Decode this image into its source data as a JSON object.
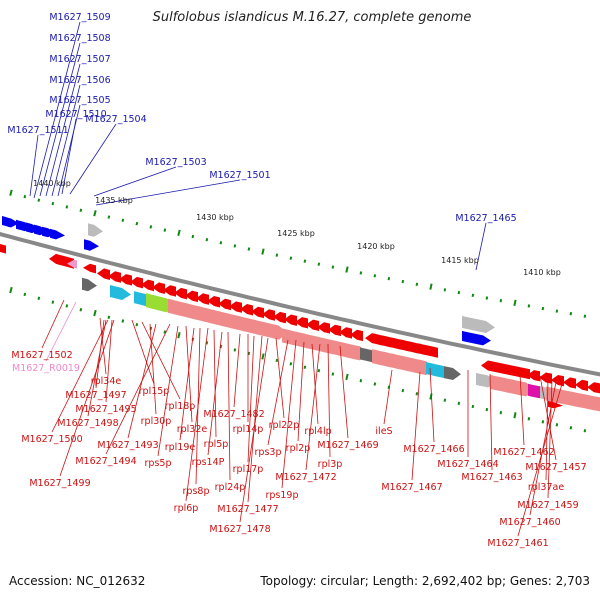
{
  "title": "Sulfolobus islandicus M.16.27, complete genome",
  "footer": {
    "accession": "Accession: NC_012632",
    "summary": "Topology: circular; Length: 2,692,402 bp; Genes: 2,703"
  },
  "colors": {
    "backbone": "#888888",
    "forward_gene": "#0000ee",
    "reverse_gene": "#ee0000",
    "reverse_cds": "#f08a8a",
    "pseudo": "#ee99cc",
    "tick": "#118811",
    "rna_cyan": "#22bbdd",
    "rna_green": "#99dd33",
    "rna_magenta": "#dd11aa",
    "grey_block": "#bbbbbb",
    "dark_block": "#666666"
  },
  "scale_labels": [
    "1440 kbp",
    "1435 kbp",
    "1430 kbp",
    "1425 kbp",
    "1420 kbp",
    "1415 kbp",
    "1410 kbp"
  ],
  "top_labels": [
    "M1627_1509",
    "M1627_1508",
    "M1627_1507",
    "M1627_1506",
    "M1627_1505",
    "M1627_1510",
    "M1627_1511",
    "M1627_1504",
    "M1627_1503",
    "M1627_1501",
    "M1627_1465"
  ],
  "bottom_labels": [
    "M1627_1502",
    "M1627_R0019",
    "rpl34e",
    "M1627_1497",
    "M1627_1495",
    "M1627_1498",
    "M1627_1500",
    "M1627_1499",
    "rpl15p",
    "rpl18p",
    "rpl30p",
    "M1627_1493",
    "M1627_1494",
    "rps5p",
    "rpl32e",
    "rpl19e",
    "rps8p",
    "rpl6p",
    "rpl5p",
    "rps14P",
    "rpl24p",
    "M1627_1482",
    "rpl14p",
    "rpl17p",
    "M1627_1477",
    "M1627_1478",
    "rpl22p",
    "rps3p",
    "rps19p",
    "rpl2p",
    "rpl4lp",
    "M1627_1472",
    "rpl3p",
    "M1627_1469",
    "ileS",
    "M1627_1466",
    "M1627_1467",
    "M1627_1464",
    "M1627_1463",
    "M1627_1462",
    "M1627_1457",
    "rpl37ae",
    "M1627_1459",
    "M1627_1460",
    "M1627_1461"
  ]
}
